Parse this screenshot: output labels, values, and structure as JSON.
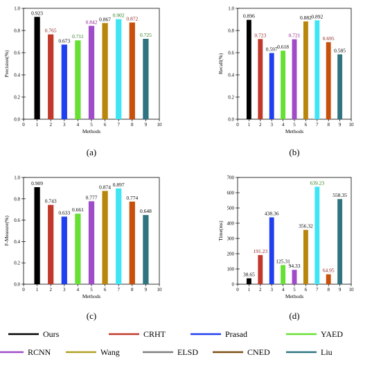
{
  "figure": {
    "panel_letters": [
      "(a)",
      "(b)",
      "(c)",
      "(d)"
    ]
  },
  "legend": {
    "items": [
      {
        "label": "Ours",
        "color": "#000000"
      },
      {
        "label": "CRHT",
        "color": "#c0392b"
      },
      {
        "label": "Prasad",
        "color": "#1f3ff0"
      },
      {
        "label": "YAED",
        "color": "#66e033"
      },
      {
        "label": "RCNN",
        "color": "#a04cc8"
      },
      {
        "label": "Wang",
        "color": "#b0a025"
      },
      {
        "label": "ELSD",
        "color": "#7f7f7f"
      },
      {
        "label": "CNED",
        "color": "#7a4e12"
      },
      {
        "label": "Liu",
        "color": "#2f7480"
      }
    ]
  },
  "chart_data": [
    {
      "type": "bar",
      "panel": "(a)",
      "ylabel": "Precision(%)",
      "xlabel": "Methods",
      "x": [
        1,
        2,
        3,
        4,
        5,
        6,
        7,
        8,
        9
      ],
      "values": [
        0.923,
        0.765,
        0.673,
        0.711,
        0.842,
        0.867,
        0.902,
        0.872,
        0.725
      ],
      "labels": [
        "0.923",
        "0.765",
        "0.673",
        "0.711",
        "0.842",
        "0.867",
        "0.902",
        "0.872",
        "0.725"
      ],
      "bar_colors": [
        "#000000",
        "#c0392b",
        "#1f3ff0",
        "#66e033",
        "#a04cc8",
        "#b8860b",
        "#3ee5f5",
        "#c8500a",
        "#2f7480"
      ],
      "label_colors": [
        "#000000",
        "#8b1a1a",
        "#000000",
        "#2a7a1a",
        "#8b1a8b",
        "#000000",
        "#2a7a1a",
        "#8b1a1a",
        "#2a7a1a"
      ],
      "xlim": [
        0,
        10
      ],
      "ylim": [
        0,
        1.0
      ],
      "xticks": [
        "0",
        "1",
        "2",
        "3",
        "4",
        "5",
        "6",
        "7",
        "8",
        "9",
        "10"
      ],
      "yticks": [
        "0.0",
        "0.2",
        "0.4",
        "0.6",
        "0.8",
        "1.0"
      ],
      "ytick_values": [
        0,
        0.2,
        0.4,
        0.6,
        0.8,
        1.0
      ]
    },
    {
      "type": "bar",
      "panel": "(b)",
      "ylabel": "Recall(%)",
      "xlabel": "Methods",
      "x": [
        1,
        2,
        3,
        4,
        5,
        6,
        7,
        8,
        9
      ],
      "values": [
        0.896,
        0.723,
        0.597,
        0.618,
        0.721,
        0.882,
        0.892,
        0.695,
        0.585
      ],
      "labels": [
        "0.896",
        "0.723",
        "0.597",
        "0.618",
        "0.721",
        "0.882",
        "0.892",
        "0.695",
        "0.585"
      ],
      "bar_colors": [
        "#000000",
        "#c0392b",
        "#1f3ff0",
        "#66e033",
        "#a04cc8",
        "#b8860b",
        "#3ee5f5",
        "#c8500a",
        "#2f7480"
      ],
      "label_colors": [
        "#000000",
        "#8b1a1a",
        "#000000",
        "#000000",
        "#8b1a8b",
        "#000000",
        "#000000",
        "#8b1a1a",
        "#000000"
      ],
      "xlim": [
        0,
        10
      ],
      "ylim": [
        0,
        1.0
      ],
      "xticks": [
        "0",
        "1",
        "2",
        "3",
        "4",
        "5",
        "6",
        "7",
        "8",
        "9",
        "10"
      ],
      "yticks": [
        "0.0",
        "0.2",
        "0.4",
        "0.6",
        "0.8",
        "1.0"
      ],
      "ytick_values": [
        0,
        0.2,
        0.4,
        0.6,
        0.8,
        1.0
      ]
    },
    {
      "type": "bar",
      "panel": "(c)",
      "ylabel": "F-Measure(%)",
      "xlabel": "Methods",
      "x": [
        1,
        2,
        3,
        4,
        5,
        6,
        7,
        8,
        9
      ],
      "values": [
        0.909,
        0.743,
        0.633,
        0.661,
        0.777,
        0.874,
        0.897,
        0.774,
        0.648
      ],
      "labels": [
        "0.909",
        "0.743",
        "0.633",
        "0.661",
        "0.777",
        "0.874",
        "0.897",
        "0.774",
        "0.648"
      ],
      "bar_colors": [
        "#000000",
        "#c0392b",
        "#1f3ff0",
        "#66e033",
        "#a04cc8",
        "#b8860b",
        "#3ee5f5",
        "#c8500a",
        "#2f7480"
      ],
      "label_colors": [
        "#000000",
        "#000000",
        "#000000",
        "#000000",
        "#000000",
        "#000000",
        "#000000",
        "#000000",
        "#000000"
      ],
      "xlim": [
        0,
        10
      ],
      "ylim": [
        0,
        1.0
      ],
      "xticks": [
        "0",
        "1",
        "2",
        "3",
        "4",
        "5",
        "6",
        "7",
        "8",
        "9",
        "10"
      ],
      "yticks": [
        "0.0",
        "0.2",
        "0.4",
        "0.6",
        "0.8",
        "1.0"
      ],
      "ytick_values": [
        0,
        0.2,
        0.4,
        0.6,
        0.8,
        1.0
      ]
    },
    {
      "type": "bar",
      "panel": "(d)",
      "ylabel": "Time(ms)",
      "xlabel": "Methods",
      "x": [
        1,
        2,
        3,
        4,
        5,
        6,
        7,
        8,
        9
      ],
      "values": [
        38.65,
        191.23,
        438.36,
        125.31,
        94.33,
        356.32,
        639.23,
        64.95,
        558.35
      ],
      "labels": [
        "38.65",
        "191.23",
        "438.36",
        "125.31",
        "94.33",
        "356.32",
        "639.23",
        "64.95",
        "558.35"
      ],
      "bar_colors": [
        "#000000",
        "#c0392b",
        "#1f3ff0",
        "#66e033",
        "#a04cc8",
        "#b8860b",
        "#3ee5f5",
        "#c8500a",
        "#2f7480"
      ],
      "label_colors": [
        "#000000",
        "#8b1a1a",
        "#000000",
        "#000000",
        "#000000",
        "#000000",
        "#2a7a1a",
        "#8b1a1a",
        "#000000"
      ],
      "xlim": [
        0,
        10
      ],
      "ylim": [
        0,
        700
      ],
      "xticks": [
        "0",
        "1",
        "2",
        "3",
        "4",
        "5",
        "6",
        "7",
        "8",
        "9",
        "10"
      ],
      "yticks": [
        "0",
        "100",
        "200",
        "300",
        "400",
        "500",
        "600",
        "700"
      ],
      "ytick_values": [
        0,
        100,
        200,
        300,
        400,
        500,
        600,
        700
      ]
    }
  ]
}
